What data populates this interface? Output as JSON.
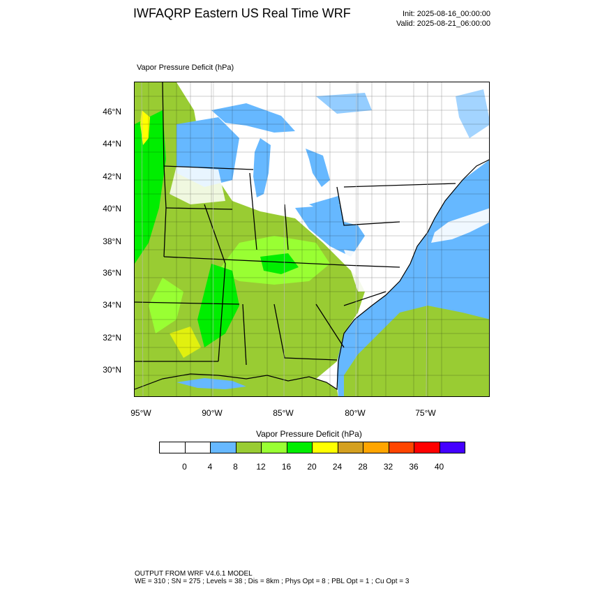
{
  "header": {
    "title": "IWFAQRP Eastern US Real Time WRF",
    "init": "Init: 2025-08-16_00:00:00",
    "valid": "Valid: 2025-08-21_06:00:00"
  },
  "map": {
    "field_label": "Vapor Pressure Deficit   (hPa)",
    "lat_labels": [
      "46°N",
      "44°N",
      "42°N",
      "40°N",
      "38°N",
      "36°N",
      "34°N",
      "32°N",
      "30°N"
    ],
    "lon_labels": [
      "95°W",
      "90°W",
      "85°W",
      "80°W",
      "75°W"
    ],
    "colors": {
      "land_white": "#ffffff",
      "ocean": "#66b8ff",
      "gulf_land": "#99cc33",
      "mid_green": "#99cc33",
      "light_green": "#99ff33",
      "bright_green": "#00ee00",
      "yellow": "#ffff00",
      "boundaries": "#000000"
    }
  },
  "colorbar": {
    "title": "Vapor Pressure Deficit  (hPa)",
    "colors": [
      "#ffffff",
      "#ffffff",
      "#66b8ff",
      "#99cc33",
      "#99ff33",
      "#00ee00",
      "#ffff00",
      "#d4a020",
      "#ffa500",
      "#ff4500",
      "#ff0000",
      "#4400ff"
    ],
    "labels": [
      "0",
      "4",
      "8",
      "12",
      "16",
      "20",
      "24",
      "28",
      "32",
      "36",
      "40"
    ]
  },
  "footer": {
    "line1": "OUTPUT FROM WRF V4.6.1 MODEL",
    "line2": "WE = 310 ; SN = 275 ; Levels = 38 ; Dis = 8km ; Phys Opt = 8 ; PBL Opt = 1 ; Cu Opt = 3"
  }
}
